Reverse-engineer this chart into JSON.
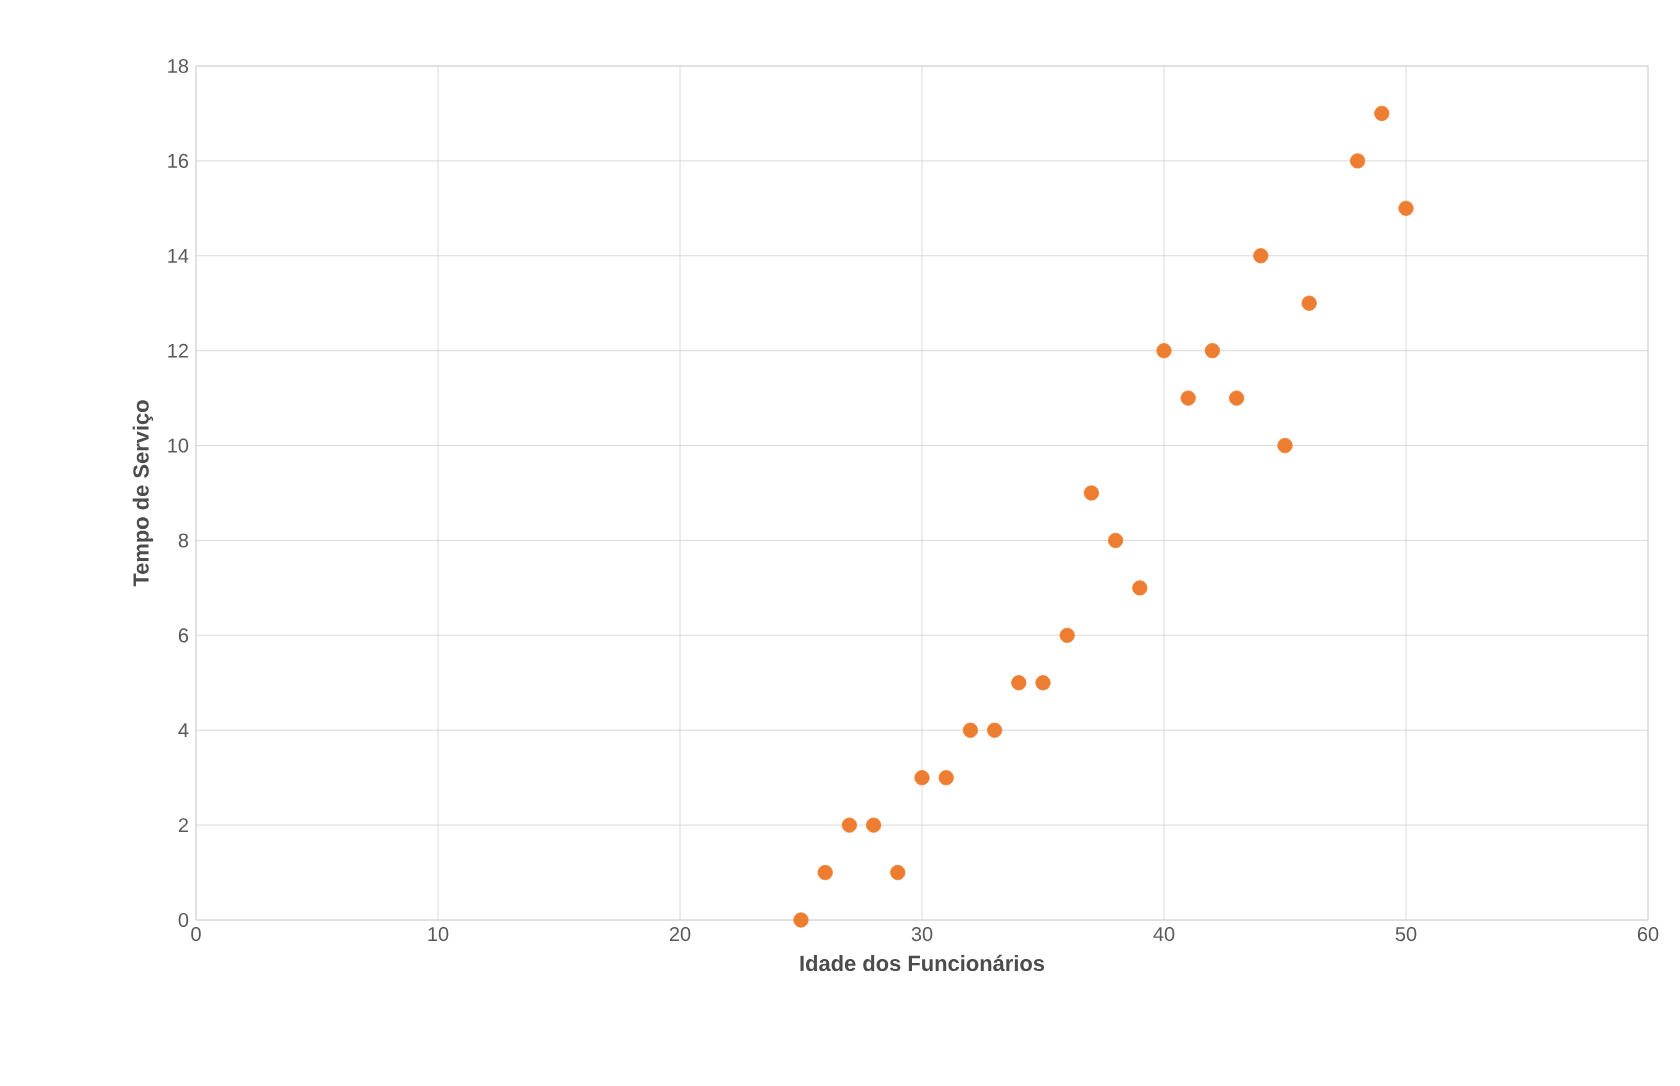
{
  "chart_data": {
    "type": "scatter",
    "xlabel": "Idade dos Funcionários",
    "ylabel": "Tempo de Serviço",
    "x": [
      25,
      26,
      27,
      28,
      29,
      30,
      31,
      32,
      33,
      34,
      35,
      36,
      37,
      38,
      39,
      40,
      41,
      42,
      43,
      44,
      45,
      46,
      48,
      49,
      50
    ],
    "values": [
      0,
      1,
      2,
      2,
      1,
      3,
      3,
      4,
      4,
      5,
      5,
      6,
      9,
      8,
      7,
      12,
      11,
      12,
      11,
      14,
      10,
      13,
      16,
      17,
      15
    ],
    "color": "#ed7d31",
    "marker": "circle",
    "grid": true,
    "xlim": [
      0,
      60
    ],
    "xticks": [
      0,
      10,
      20,
      30,
      40,
      50,
      60
    ],
    "ylim": [
      0,
      18
    ],
    "yticks": [
      0,
      2,
      4,
      6,
      8,
      10,
      12,
      14,
      16,
      18
    ]
  }
}
